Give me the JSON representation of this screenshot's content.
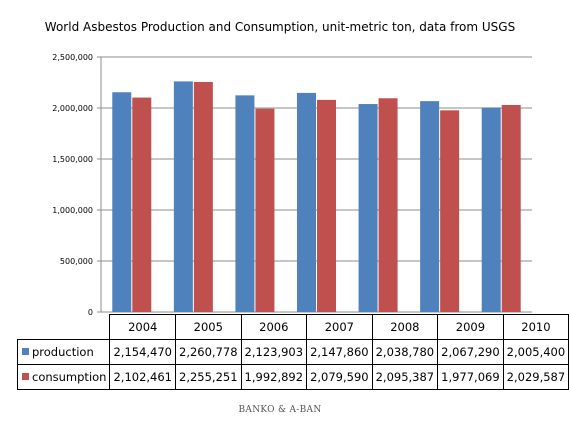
{
  "chart_data": {
    "type": "bar",
    "title": "World Asbestos Production and Consumption, unit-metric ton, data from USGS",
    "categories": [
      "2004",
      "2005",
      "2006",
      "2007",
      "2008",
      "2009",
      "2010"
    ],
    "series": [
      {
        "name": "production",
        "color": "#4F81BD",
        "values": [
          2154470,
          2260778,
          2123903,
          2147860,
          2038780,
          2067290,
          2005400
        ],
        "labels": [
          "2,154,470",
          "2,260,778",
          "2,123,903",
          "2,147,860",
          "2,038,780",
          "2,067,290",
          "2,005,400"
        ]
      },
      {
        "name": "consumption",
        "color": "#C0504D",
        "values": [
          2102461,
          2255251,
          1992892,
          2079590,
          2095387,
          1977069,
          2029587
        ],
        "labels": [
          "2,102,461",
          "2,255,251",
          "1,992,892",
          "2,079,590",
          "2,095,387",
          "1,977,069",
          "2,029,587"
        ]
      }
    ],
    "ylim": [
      0,
      2500000
    ],
    "yticks": [
      0,
      500000,
      1000000,
      1500000,
      2000000,
      2500000
    ],
    "ytick_labels": [
      "0",
      "500,000",
      "1,000,000",
      "1,500,000",
      "2,000,000",
      "2,500,000"
    ],
    "grid": true,
    "legend": "data-table"
  },
  "footer": "BANKO & A-BAN"
}
